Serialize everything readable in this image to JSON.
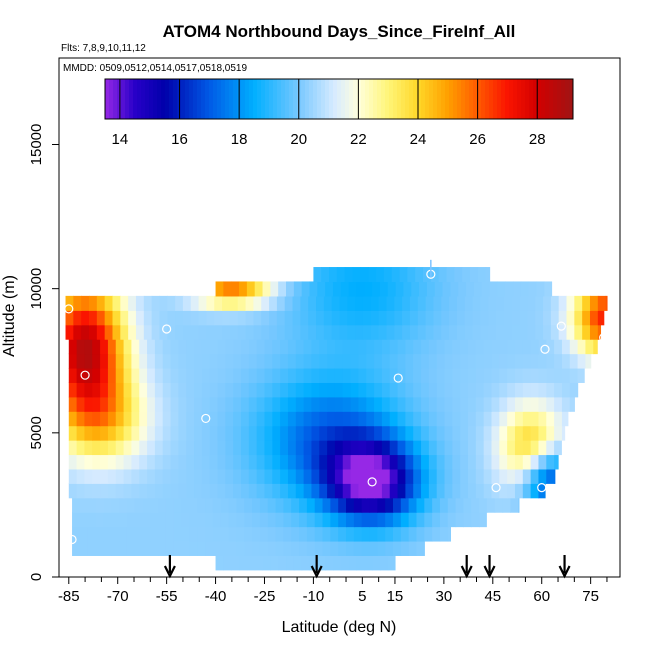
{
  "chart_data": {
    "type": "heatmap",
    "title": "ATOM4 Northbound Days_Since_FireInf_All",
    "flights_label": "Flts: 7,8,9,10,11,12",
    "dates_label": "MMDD: 0509,0512,0514,0517,0518,0519",
    "xlabel": "Latitude (deg N)",
    "ylabel": "Altitude (m)",
    "xlim": [
      -88,
      84
    ],
    "ylim": [
      0,
      18000
    ],
    "x_ticks": [
      -85,
      -70,
      -55,
      -40,
      -25,
      -10,
      5,
      15,
      30,
      45,
      60,
      75
    ],
    "x_minor_step": 5,
    "y_ticks": [
      0,
      5000,
      10000,
      15000
    ],
    "colorbar": {
      "range": [
        13.5,
        29.2
      ],
      "ticks": [
        14,
        16,
        18,
        20,
        22,
        24,
        26,
        28
      ]
    },
    "profile_latitudes": [
      -54,
      -9,
      37,
      44,
      67
    ],
    "rows": [
      {
        "alt": 500,
        "x0": -40,
        "x1": 15
      },
      {
        "alt": 1000,
        "x0": -84,
        "x1": 24
      },
      {
        "alt": 1500,
        "x0": -84,
        "x1": 32
      },
      {
        "alt": 2000,
        "x0": -84,
        "x1": 43
      },
      {
        "alt": 2500,
        "x0": -84,
        "x1": 53
      },
      {
        "alt": 3000,
        "x0": -85,
        "x1": 61
      },
      {
        "alt": 3500,
        "x0": -85,
        "x1": 64
      },
      {
        "alt": 4000,
        "x0": -85,
        "x1": 65
      },
      {
        "alt": 4500,
        "x0": -85,
        "x1": 66
      },
      {
        "alt": 5000,
        "x0": -85,
        "x1": 67
      },
      {
        "alt": 5500,
        "x0": -85,
        "x1": 68
      },
      {
        "alt": 6000,
        "x0": -85,
        "x1": 70
      },
      {
        "alt": 6500,
        "x0": -85,
        "x1": 71
      },
      {
        "alt": 7000,
        "x0": -85,
        "x1": 73
      },
      {
        "alt": 7500,
        "x0": -85,
        "x1": 75
      },
      {
        "alt": 8000,
        "x0": -85,
        "x1": 77
      },
      {
        "alt": 8500,
        "x0": -86,
        "x1": 78
      },
      {
        "alt": 9000,
        "x0": -86,
        "x1": 79
      },
      {
        "alt": 9500,
        "x0": -86,
        "x1": 80
      },
      {
        "alt": 10000,
        "x0": -40,
        "x1": 63
      },
      {
        "alt": 10500,
        "x0": -10,
        "x1": 44
      }
    ],
    "centers": [
      {
        "lat": 8,
        "alt": 3300,
        "value": 14.0,
        "sx": 14,
        "sy": 1400
      },
      {
        "lat": -5,
        "alt": 4800,
        "value": 17.0,
        "sx": 22,
        "sy": 2200
      },
      {
        "lat": 5,
        "alt": 10000,
        "value": 18.5,
        "sx": 22,
        "sy": 2200
      },
      {
        "lat": 62,
        "alt": 3400,
        "value": 15.5,
        "sx": 8,
        "sy": 1200
      },
      {
        "lat": -80,
        "alt": 8000,
        "value": 28.5,
        "sx": 12,
        "sy": 2200
      },
      {
        "lat": 80,
        "alt": 9000,
        "value": 27.0,
        "sx": 10,
        "sy": 1300
      },
      {
        "lat": 57,
        "alt": 4500,
        "value": 24.5,
        "sx": 10,
        "sy": 1500
      },
      {
        "lat": -75,
        "alt": 5500,
        "value": 24.0,
        "sx": 14,
        "sy": 1600
      },
      {
        "lat": -35,
        "alt": 10000,
        "value": 25.5,
        "sx": 12,
        "sy": 600
      }
    ],
    "base_value": 20.3,
    "sample_points": [
      {
        "lat": -85,
        "alt": 9300
      },
      {
        "lat": -80,
        "alt": 7000
      },
      {
        "lat": -84,
        "alt": 1300
      },
      {
        "lat": -55,
        "alt": 8600
      },
      {
        "lat": -43,
        "alt": 5500
      },
      {
        "lat": 8,
        "alt": 3300
      },
      {
        "lat": 16,
        "alt": 6900
      },
      {
        "lat": 26,
        "alt": 10500
      },
      {
        "lat": 46,
        "alt": 3100
      },
      {
        "lat": 60,
        "alt": 3100
      },
      {
        "lat": 61,
        "alt": 7900
      },
      {
        "lat": 66,
        "alt": 8700
      },
      {
        "lat": 79,
        "alt": 8300
      }
    ]
  }
}
